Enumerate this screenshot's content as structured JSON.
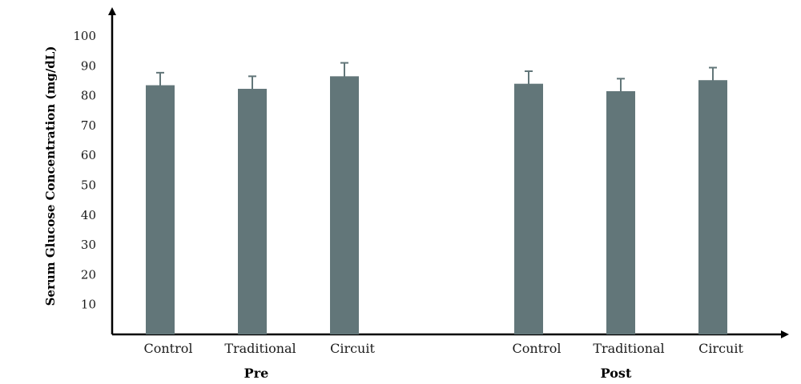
{
  "chart_data": {
    "type": "bar",
    "title": "",
    "xlabel": "",
    "ylabel": "Serum Glucose Concentration (mg/dL)",
    "ylim": [
      0,
      100
    ],
    "yticks": [
      10,
      20,
      30,
      40,
      50,
      60,
      70,
      80,
      90,
      100
    ],
    "grid": false,
    "legend": "none",
    "bar_color": "#627679",
    "error_color": "#627679",
    "groups": [
      {
        "name": "Pre",
        "categories": [
          "Control",
          "Traditional",
          "Circuit"
        ],
        "values": [
          83.5,
          82.3,
          86.5
        ],
        "errors": [
          4.2,
          4.2,
          4.5
        ]
      },
      {
        "name": "Post",
        "categories": [
          "Control",
          "Traditional",
          "Circuit"
        ],
        "values": [
          84.0,
          81.5,
          85.2
        ],
        "errors": [
          4.2,
          4.2,
          4.2
        ]
      }
    ]
  }
}
